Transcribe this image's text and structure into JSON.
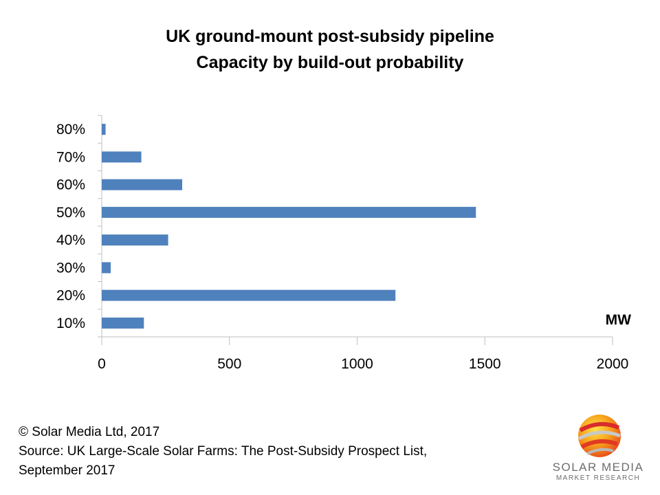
{
  "chart_data": {
    "type": "bar",
    "orientation": "horizontal",
    "title": [
      "UK ground-mount post-subsidy pipeline",
      "Capacity by  build-out probability"
    ],
    "unit_label": "MW",
    "categories": [
      "10%",
      "20%",
      "30%",
      "40%",
      "50%",
      "60%",
      "70%",
      "80%"
    ],
    "values": [
      165,
      1150,
      35,
      260,
      1465,
      315,
      155,
      15
    ],
    "xlim": [
      0,
      2000
    ],
    "xticks": [
      "0",
      "500",
      "1000",
      "1500",
      "2000"
    ],
    "bar_color": "#4f81bd",
    "grid": false,
    "legend": "none"
  },
  "footer": {
    "copyright": "© Solar Media Ltd, 2017",
    "source_line1": "Source: UK Large-Scale Solar Farms: The Post-Subsidy Prospect List,",
    "source_line2": "September 2017"
  },
  "logo": {
    "brand": "SOLAR MEDIA",
    "tagline": "MARKET RESEARCH"
  }
}
